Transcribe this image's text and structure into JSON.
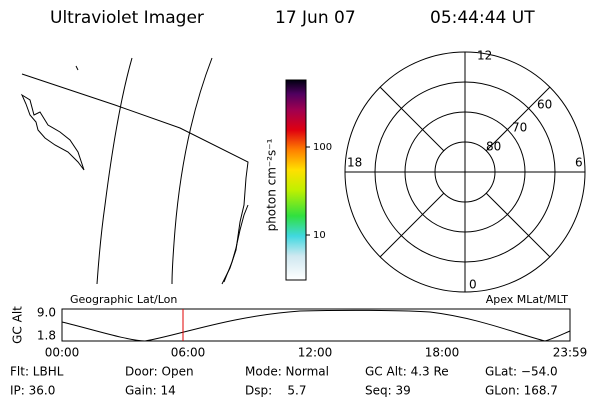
{
  "header": {
    "title": "Ultraviolet Imager",
    "date": "17 Jun 07",
    "time": "05:44:44 UT"
  },
  "colorbar": {
    "label": "photon cm⁻²s⁻¹",
    "ticks": [
      "100",
      "10"
    ]
  },
  "polar": {
    "mlt": [
      "12",
      "18",
      "6",
      "0"
    ],
    "mlat": [
      "60",
      "70",
      "80"
    ]
  },
  "orbit": {
    "ylabel": "GC Alt",
    "yticks": [
      "9.0",
      "1.8"
    ],
    "left_title": "Geographic Lat/Lon",
    "right_title": "Apex MLat/MLT",
    "xticks": [
      "00:00",
      "06:00",
      "12:00",
      "18:00",
      "23:59"
    ]
  },
  "info": {
    "rows": [
      [
        "Flt: LBHL",
        "Door: Open",
        "Mode: Normal",
        "GC Alt: 4.3 Re",
        "GLat: −54.0"
      ],
      [
        "IP: 36.0",
        "Gain: 14",
        "Dsp:    5.7",
        "Seq: 39",
        "GLon: 168.7"
      ]
    ]
  }
}
